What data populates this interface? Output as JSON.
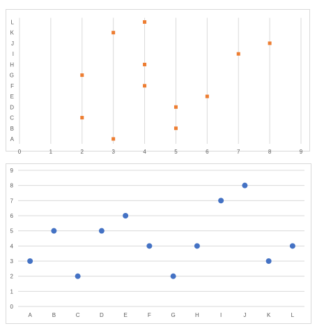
{
  "chart_data": [
    {
      "type": "scatter",
      "orientation": "horizontal",
      "categories": [
        "A",
        "B",
        "C",
        "D",
        "E",
        "F",
        "G",
        "H",
        "I",
        "J",
        "K",
        "L"
      ],
      "values": [
        3,
        5,
        2,
        5,
        6,
        4,
        2,
        4,
        7,
        8,
        3,
        4
      ],
      "xlim": [
        0,
        9
      ],
      "x_ticks": [
        "0",
        "1",
        "2",
        "3",
        "4",
        "5",
        "6",
        "7",
        "8",
        "9"
      ],
      "marker": "square",
      "color": "#ED7D31",
      "grid": "vertical",
      "legend": "none"
    },
    {
      "type": "scatter",
      "orientation": "vertical",
      "categories": [
        "A",
        "B",
        "C",
        "D",
        "E",
        "F",
        "G",
        "H",
        "I",
        "J",
        "K",
        "L"
      ],
      "values": [
        3,
        5,
        2,
        5,
        6,
        4,
        2,
        4,
        7,
        8,
        3,
        4
      ],
      "ylim": [
        0,
        9
      ],
      "y_ticks": [
        "0",
        "1",
        "2",
        "3",
        "4",
        "5",
        "6",
        "7",
        "8",
        "9"
      ],
      "marker": "circle",
      "color": "#4472C4",
      "grid": "horizontal",
      "legend": "none"
    }
  ]
}
